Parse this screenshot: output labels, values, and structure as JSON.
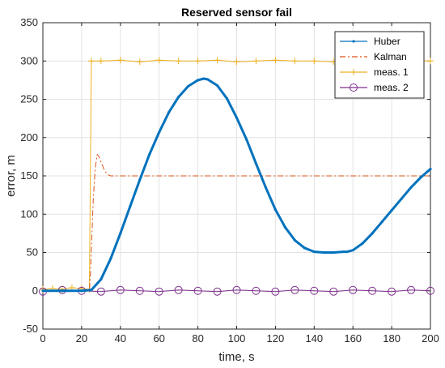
{
  "chart_data": {
    "type": "line",
    "title": "Reserved sensor fail",
    "xlabel": "time, s",
    "ylabel": "error, m",
    "xlim": [
      0,
      200
    ],
    "ylim": [
      -50,
      350
    ],
    "xticks": [
      0,
      20,
      40,
      60,
      80,
      100,
      120,
      140,
      160,
      180,
      200
    ],
    "yticks": [
      -50,
      0,
      50,
      100,
      150,
      200,
      250,
      300,
      350
    ],
    "grid": true,
    "legend_position": "top-right",
    "series": [
      {
        "name": "Huber",
        "color": "#0072BD",
        "marker": "dot",
        "line_style": "solid",
        "x": [
          0,
          10,
          20,
          25,
          30,
          35,
          40,
          45,
          50,
          55,
          60,
          65,
          70,
          75,
          80,
          83,
          85,
          90,
          95,
          100,
          105,
          110,
          115,
          120,
          125,
          130,
          135,
          140,
          145,
          150,
          155,
          157,
          160,
          165,
          170,
          175,
          180,
          185,
          190,
          195,
          200
        ],
        "y": [
          0,
          0,
          0,
          1,
          15,
          42,
          75,
          110,
          145,
          178,
          207,
          233,
          253,
          267,
          275,
          277,
          276,
          268,
          251,
          226,
          198,
          166,
          135,
          106,
          83,
          66,
          56,
          51,
          50,
          50,
          51,
          51,
          53,
          62,
          75,
          90,
          105,
          120,
          135,
          148,
          159
        ]
      },
      {
        "name": "Kalman",
        "color": "#D95319",
        "marker": "none",
        "line_style": "dash-dot",
        "x": [
          0,
          24,
          24.5,
          26,
          27,
          28,
          29,
          30,
          32,
          34,
          35,
          40,
          60,
          80,
          100,
          120,
          140,
          160,
          180,
          200
        ],
        "y": [
          0,
          0,
          20,
          120,
          160,
          178,
          175,
          168,
          156,
          151,
          150,
          150,
          150,
          150,
          150,
          150,
          150,
          150,
          150,
          150
        ]
      },
      {
        "name": "meas. 1",
        "color": "#EDB120",
        "marker": "plus",
        "line_style": "solid",
        "x": [
          0,
          5,
          10,
          15,
          20,
          24,
          25,
          30,
          40,
          50,
          60,
          70,
          80,
          90,
          100,
          110,
          120,
          130,
          140,
          150,
          160,
          170,
          180,
          190,
          200
        ],
        "y": [
          2,
          3,
          2,
          4,
          3,
          2,
          300,
          300,
          301,
          299,
          301,
          300,
          300,
          301,
          299,
          300,
          301,
          300,
          300,
          299,
          301,
          300,
          300,
          301,
          300
        ]
      },
      {
        "name": "meas. 2",
        "color": "#7E2F8E",
        "marker": "circle",
        "line_style": "solid",
        "x": [
          0,
          10,
          20,
          30,
          40,
          50,
          60,
          70,
          80,
          90,
          100,
          110,
          120,
          130,
          140,
          150,
          160,
          170,
          180,
          190,
          200
        ],
        "y": [
          -1,
          1,
          0,
          -1,
          1,
          0,
          -1,
          1,
          0,
          -1,
          1,
          0,
          -1,
          1,
          0,
          -1,
          1,
          0,
          -1,
          1,
          0
        ]
      }
    ]
  }
}
